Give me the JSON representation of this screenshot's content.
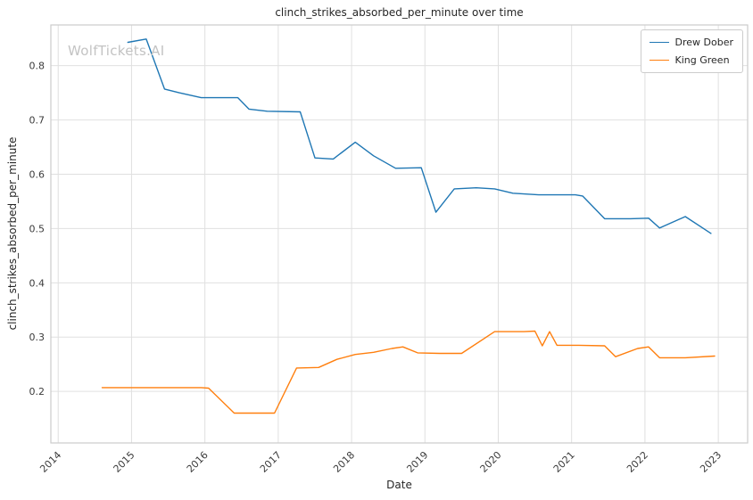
{
  "watermark": {
    "text": "WolfTickets.AI"
  },
  "chart_data": {
    "type": "line",
    "title": "clinch_strikes_absorbed_per_minute over time",
    "xlabel": "Date",
    "ylabel": "clinch_strikes_absorbed_per_minute",
    "xlim": [
      2013.9,
      2023.4
    ],
    "ylim": [
      0.105,
      0.875
    ],
    "x_ticks": [
      2014,
      2015,
      2016,
      2017,
      2018,
      2019,
      2020,
      2021,
      2022,
      2023
    ],
    "y_ticks": [
      0.2,
      0.3,
      0.4,
      0.5,
      0.6,
      0.7,
      0.8
    ],
    "grid": true,
    "grid_color": "#e0e0e0",
    "spine_color": "#cccccc",
    "tick_label_color": "#3b3b3b",
    "legend_position": "upper right",
    "series": [
      {
        "name": "Drew Dober",
        "color": "#1f77b4",
        "points": [
          [
            2014.95,
            0.843
          ],
          [
            2015.2,
            0.849
          ],
          [
            2015.45,
            0.757
          ],
          [
            2015.65,
            0.75
          ],
          [
            2015.95,
            0.741
          ],
          [
            2016.45,
            0.741
          ],
          [
            2016.6,
            0.72
          ],
          [
            2016.85,
            0.716
          ],
          [
            2017.3,
            0.715
          ],
          [
            2017.5,
            0.63
          ],
          [
            2017.75,
            0.628
          ],
          [
            2018.05,
            0.659
          ],
          [
            2018.3,
            0.634
          ],
          [
            2018.6,
            0.611
          ],
          [
            2018.95,
            0.612
          ],
          [
            2019.15,
            0.53
          ],
          [
            2019.4,
            0.573
          ],
          [
            2019.7,
            0.575
          ],
          [
            2019.95,
            0.573
          ],
          [
            2020.2,
            0.565
          ],
          [
            2020.55,
            0.562
          ],
          [
            2021.05,
            0.562
          ],
          [
            2021.15,
            0.56
          ],
          [
            2021.45,
            0.518
          ],
          [
            2021.8,
            0.518
          ],
          [
            2022.05,
            0.519
          ],
          [
            2022.2,
            0.501
          ],
          [
            2022.55,
            0.522
          ],
          [
            2022.9,
            0.491
          ]
        ]
      },
      {
        "name": "King Green",
        "color": "#ff7f0e",
        "points": [
          [
            2014.6,
            0.207
          ],
          [
            2015.2,
            0.207
          ],
          [
            2015.95,
            0.207
          ],
          [
            2016.05,
            0.206
          ],
          [
            2016.4,
            0.16
          ],
          [
            2016.95,
            0.16
          ],
          [
            2017.25,
            0.243
          ],
          [
            2017.55,
            0.244
          ],
          [
            2017.8,
            0.259
          ],
          [
            2018.05,
            0.268
          ],
          [
            2018.3,
            0.272
          ],
          [
            2018.55,
            0.279
          ],
          [
            2018.7,
            0.282
          ],
          [
            2018.9,
            0.271
          ],
          [
            2019.2,
            0.27
          ],
          [
            2019.5,
            0.27
          ],
          [
            2019.95,
            0.31
          ],
          [
            2020.35,
            0.31
          ],
          [
            2020.5,
            0.311
          ],
          [
            2020.6,
            0.284
          ],
          [
            2020.7,
            0.31
          ],
          [
            2020.8,
            0.285
          ],
          [
            2021.1,
            0.285
          ],
          [
            2021.45,
            0.284
          ],
          [
            2021.6,
            0.264
          ],
          [
            2021.9,
            0.279
          ],
          [
            2022.05,
            0.282
          ],
          [
            2022.2,
            0.262
          ],
          [
            2022.55,
            0.262
          ],
          [
            2022.95,
            0.265
          ]
        ]
      }
    ]
  }
}
